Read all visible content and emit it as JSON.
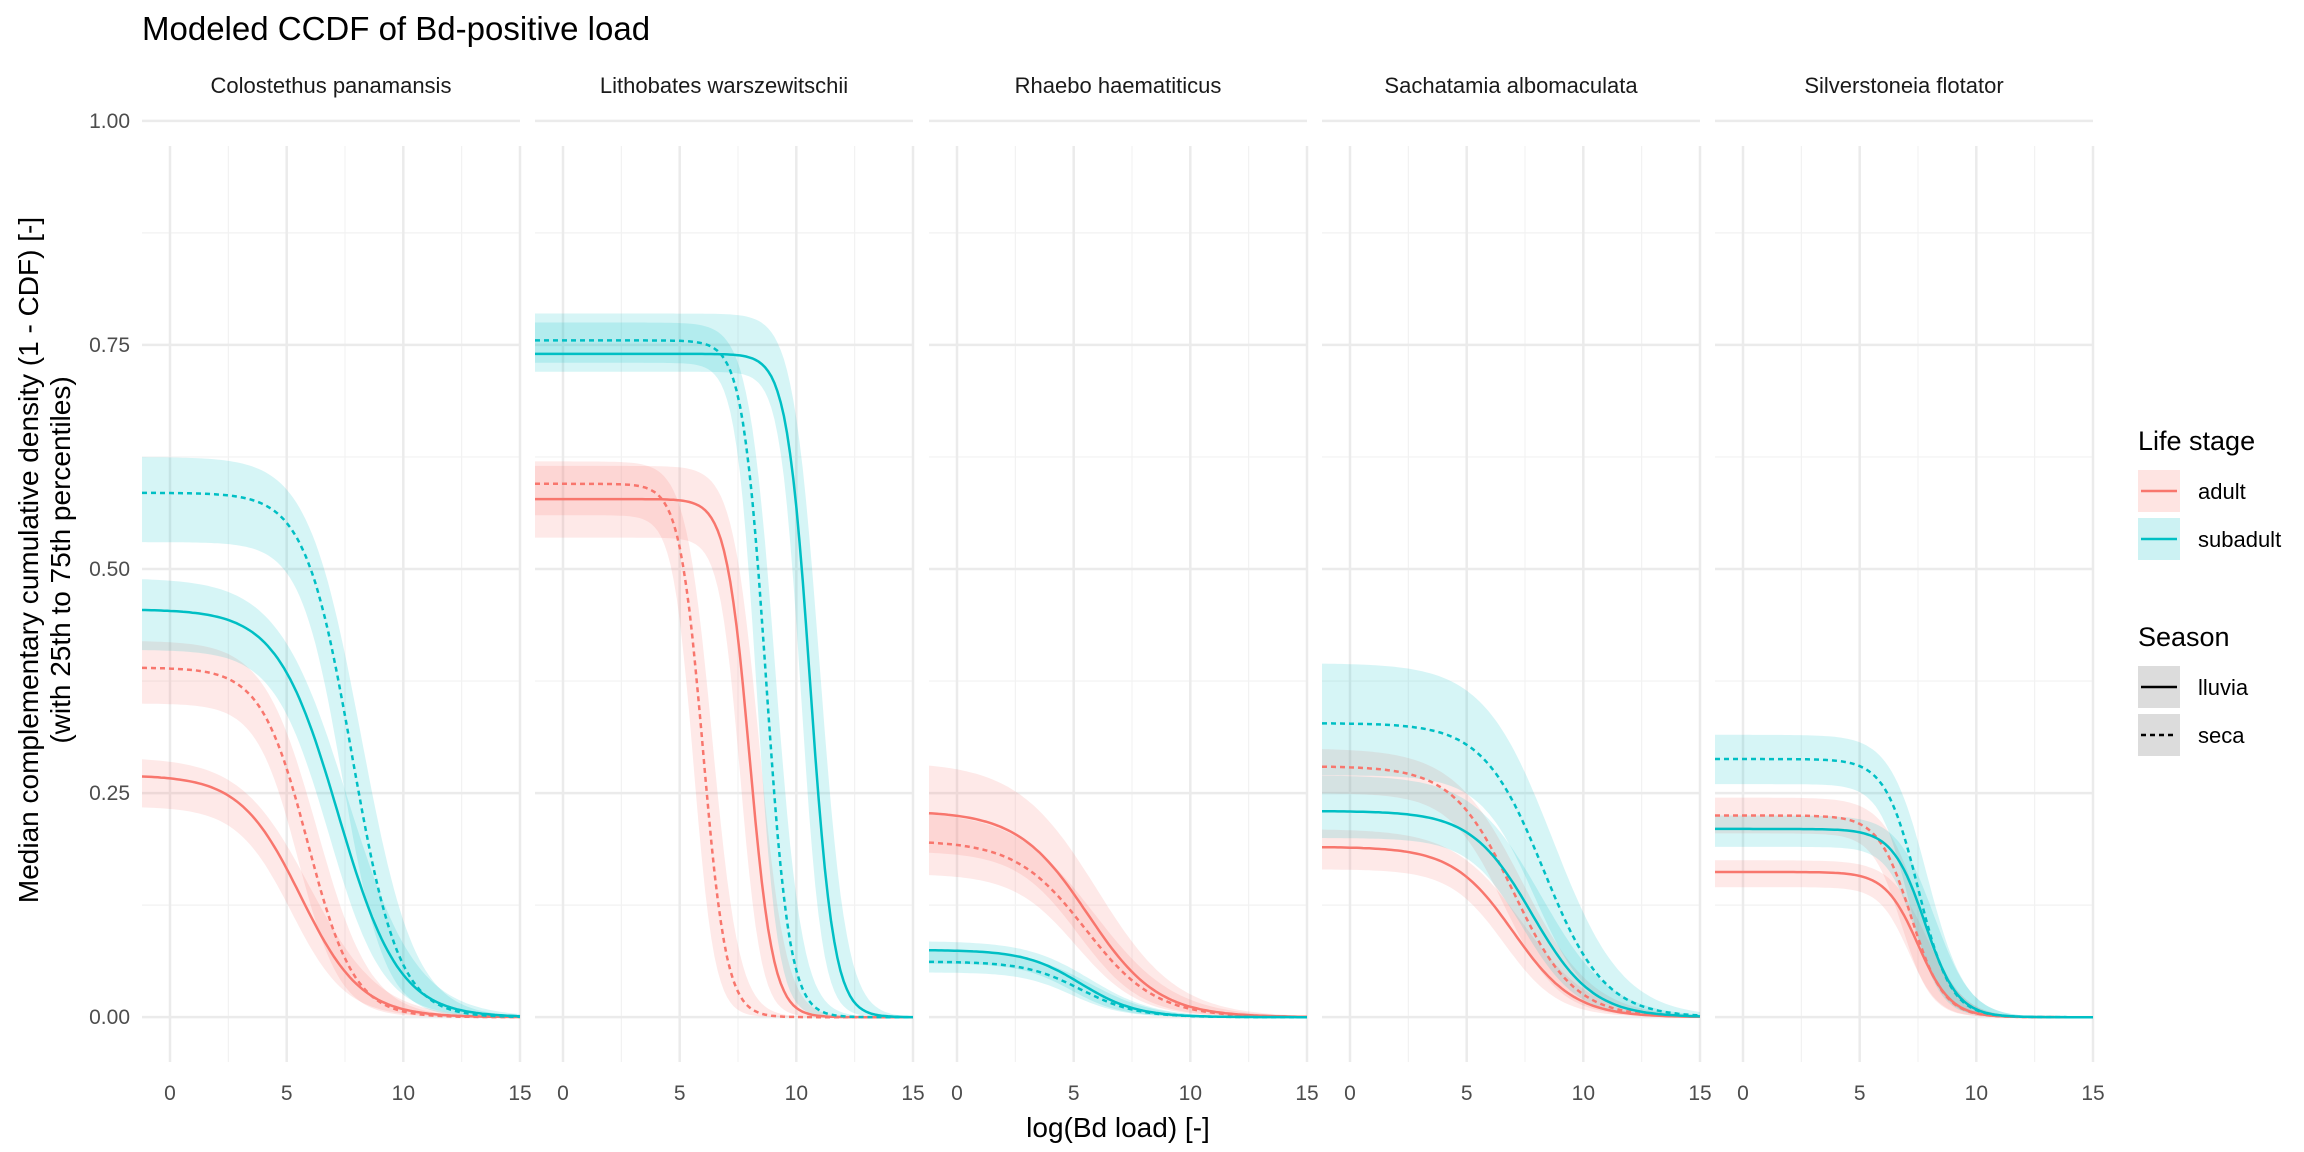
{
  "chart_data": {
    "type": "line",
    "title": "Modeled CCDF of Bd-positive load",
    "xlabel": "log(Bd load) [-]",
    "ylabel_line1": "Median complementary cumulative density (1 - CDF) [-]",
    "ylabel_line2": "(with 25th to 75th percentiles)",
    "xlim": [
      -1.2,
      15
    ],
    "ylim": [
      -0.05,
      1.05
    ],
    "x_ticks": [
      0,
      5,
      10,
      15
    ],
    "x_tick_labels": [
      "0",
      "5",
      "10",
      "15"
    ],
    "y_ticks": [
      0,
      0.25,
      0.5,
      0.75,
      1.0
    ],
    "y_tick_labels": [
      "0.00",
      "0.25",
      "0.50",
      "0.75",
      "1.00"
    ],
    "grid": true,
    "legend_position": "right",
    "legend": {
      "life_stage": {
        "title": "Life stage",
        "items": [
          "adult",
          "subadult"
        ]
      },
      "season": {
        "title": "Season",
        "items": [
          "lluvia",
          "seca"
        ]
      }
    },
    "colors": {
      "adult": "#F8766D",
      "subadult": "#00BFC4"
    },
    "panels": [
      {
        "name": "Colostethus panamansis",
        "curves": [
          {
            "life_stage": "adult",
            "season": "lluvia",
            "start": 0.27,
            "mid": 5.6,
            "scale": 1.3,
            "lo": 0.235,
            "hi": 0.29
          },
          {
            "life_stage": "adult",
            "season": "seca",
            "start": 0.39,
            "mid": 5.9,
            "scale": 1.0,
            "lo": 0.35,
            "hi": 0.42
          },
          {
            "life_stage": "subadult",
            "season": "lluvia",
            "start": 0.455,
            "mid": 7.2,
            "scale": 1.3,
            "lo": 0.41,
            "hi": 0.49
          },
          {
            "life_stage": "subadult",
            "season": "seca",
            "start": 0.585,
            "mid": 7.8,
            "scale": 1.0,
            "lo": 0.53,
            "hi": 0.625
          }
        ]
      },
      {
        "name": "Lithobates warszewitschii",
        "curves": [
          {
            "life_stage": "adult",
            "season": "lluvia",
            "start": 0.578,
            "mid": 8.0,
            "scale": 0.5,
            "lo": 0.535,
            "hi": 0.615
          },
          {
            "life_stage": "adult",
            "season": "seca",
            "start": 0.595,
            "mid": 6.0,
            "scale": 0.5,
            "lo": 0.56,
            "hi": 0.62
          },
          {
            "life_stage": "subadult",
            "season": "lluvia",
            "start": 0.74,
            "mid": 10.6,
            "scale": 0.5,
            "lo": 0.72,
            "hi": 0.785
          },
          {
            "life_stage": "subadult",
            "season": "seca",
            "start": 0.755,
            "mid": 8.7,
            "scale": 0.5,
            "lo": 0.73,
            "hi": 0.775
          }
        ]
      },
      {
        "name": "Rhaebo haematiticus",
        "curves": [
          {
            "life_stage": "adult",
            "season": "lluvia",
            "start": 0.23,
            "mid": 5.6,
            "scale": 1.5,
            "lo": 0.185,
            "hi": 0.285
          },
          {
            "life_stage": "adult",
            "season": "seca",
            "start": 0.197,
            "mid": 5.5,
            "scale": 1.5,
            "lo": 0.16,
            "hi": 0.23
          },
          {
            "life_stage": "subadult",
            "season": "lluvia",
            "start": 0.075,
            "mid": 5.3,
            "scale": 1.2,
            "lo": 0.06,
            "hi": 0.085
          },
          {
            "life_stage": "subadult",
            "season": "seca",
            "start": 0.062,
            "mid": 5.3,
            "scale": 1.2,
            "lo": 0.05,
            "hi": 0.075
          }
        ]
      },
      {
        "name": "Sachatamia albomaculata",
        "curves": [
          {
            "life_stage": "adult",
            "season": "lluvia",
            "start": 0.19,
            "mid": 7.0,
            "scale": 1.3,
            "lo": 0.165,
            "hi": 0.21
          },
          {
            "life_stage": "adult",
            "season": "seca",
            "start": 0.28,
            "mid": 7.0,
            "scale": 1.3,
            "lo": 0.25,
            "hi": 0.3
          },
          {
            "life_stage": "subadult",
            "season": "lluvia",
            "start": 0.23,
            "mid": 7.8,
            "scale": 1.3,
            "lo": 0.2,
            "hi": 0.27
          },
          {
            "life_stage": "subadult",
            "season": "seca",
            "start": 0.328,
            "mid": 8.3,
            "scale": 1.3,
            "lo": 0.27,
            "hi": 0.395
          }
        ]
      },
      {
        "name": "Silverstoneia flotator",
        "curves": [
          {
            "life_stage": "adult",
            "season": "lluvia",
            "start": 0.162,
            "mid": 7.5,
            "scale": 0.7,
            "lo": 0.145,
            "hi": 0.175
          },
          {
            "life_stage": "adult",
            "season": "seca",
            "start": 0.225,
            "mid": 7.2,
            "scale": 0.7,
            "lo": 0.205,
            "hi": 0.245
          },
          {
            "life_stage": "subadult",
            "season": "lluvia",
            "start": 0.21,
            "mid": 7.8,
            "scale": 0.7,
            "lo": 0.19,
            "hi": 0.225
          },
          {
            "life_stage": "subadult",
            "season": "seca",
            "start": 0.288,
            "mid": 7.5,
            "scale": 0.7,
            "lo": 0.26,
            "hi": 0.315
          }
        ]
      }
    ]
  }
}
